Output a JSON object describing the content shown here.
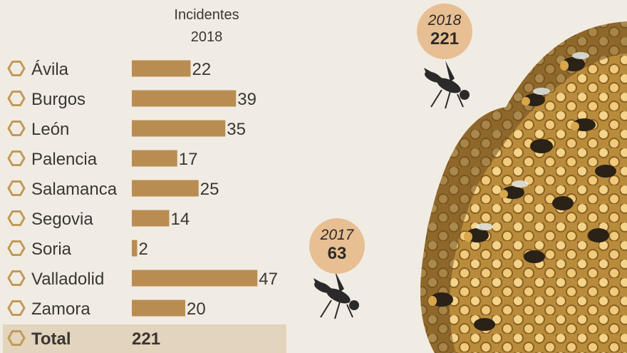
{
  "header": {
    "line1": "Incidentes",
    "line2": "2018"
  },
  "chart_data": {
    "type": "bar",
    "orientation": "horizontal",
    "title": "Incidentes 2018",
    "categories": [
      "Ávila",
      "Burgos",
      "León",
      "Palencia",
      "Salamanca",
      "Segovia",
      "Soria",
      "Valladolid",
      "Zamora"
    ],
    "values": [
      22,
      39,
      35,
      17,
      25,
      14,
      2,
      47,
      20
    ],
    "value_labels": [
      "22",
      "39",
      "35",
      "17",
      "25",
      "14",
      "2",
      "47",
      "20"
    ],
    "total": {
      "label": "Total",
      "value": "221"
    },
    "bar_color": "#b98d52"
  },
  "bubbles": {
    "y2018": {
      "year": "2018",
      "value": "221"
    },
    "y2017": {
      "year": "2017",
      "value": "63"
    }
  },
  "colors": {
    "background": "#f1ece3",
    "bar": "#b98d52",
    "hex_icon": "#c29a57",
    "bubble": "#e7bf93",
    "total_row": "#e2d4bd"
  }
}
